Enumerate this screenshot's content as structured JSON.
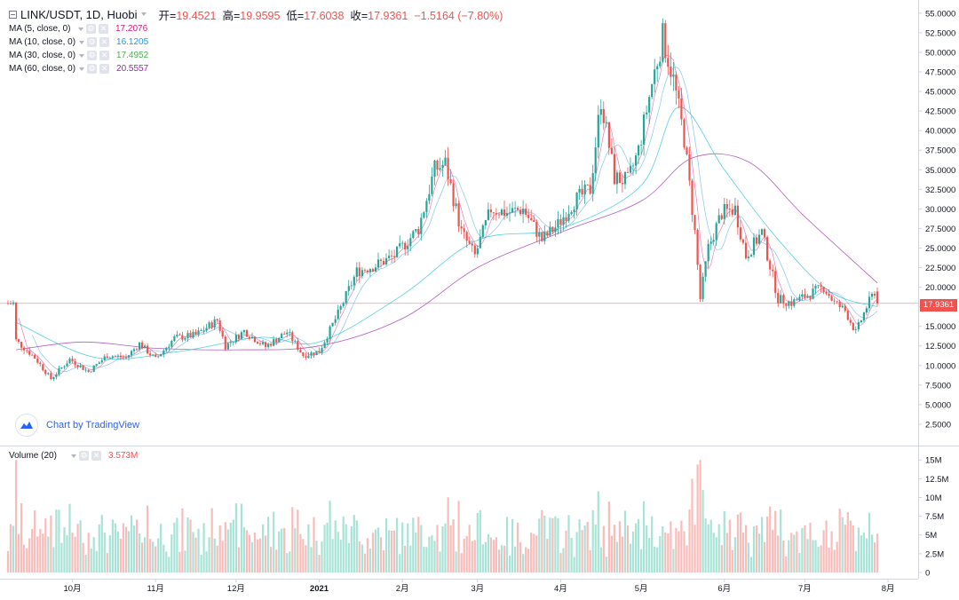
{
  "header": {
    "symbol": "LINK/USDT, 1D, Huobi",
    "open_label": "开=",
    "open": "19.4521",
    "high_label": "高=",
    "high": "19.9595",
    "low_label": "低=",
    "low": "17.6038",
    "close_label": "收=",
    "close": "17.9361",
    "change": "−1.5164 (−7.80%)"
  },
  "indicators": [
    {
      "name": "MA (5, close, 0)",
      "value": "17.2076",
      "color": "#d6197d"
    },
    {
      "name": "MA (10, close, 0)",
      "value": "16.1205",
      "color": "#2196f3"
    },
    {
      "name": "MA (30, close, 0)",
      "value": "17.4952",
      "color": "#4caf50"
    },
    {
      "name": "MA (60, close, 0)",
      "value": "20.5557",
      "color": "#9c27b0"
    }
  ],
  "volume_indicator": {
    "name": "Volume (20)",
    "value": "3.573M",
    "color": "#ef5350"
  },
  "branding": {
    "text": "Chart by TradingView"
  },
  "last_price_label": "17.9361",
  "colors": {
    "up": "#26a69a",
    "down": "#ef5350",
    "up_volume": "#a7e3d6",
    "down_volume": "#f8bcba",
    "ma5": "#d6197d",
    "ma10": "#2196f3",
    "ma30": "#4caf50",
    "ma60": "#9c27b0",
    "last_price_line": "#ef5350"
  },
  "chart_data": {
    "type": "candlestick",
    "price_axis": {
      "ticks": [
        "55.0000",
        "52.5000",
        "50.0000",
        "47.5000",
        "45.0000",
        "42.5000",
        "40.0000",
        "37.5000",
        "35.0000",
        "32.5000",
        "30.0000",
        "27.5000",
        "25.0000",
        "22.5000",
        "20.0000",
        "17.5000",
        "15.0000",
        "12.5000",
        "10.0000",
        "7.5000",
        "5.0000",
        "2.5000"
      ],
      "range": [
        0,
        56
      ]
    },
    "volume_axis": {
      "ticks": [
        "15M",
        "12.5M",
        "10M",
        "7.5M",
        "5M",
        "2.5M",
        "0"
      ],
      "range": [
        0,
        15.5
      ]
    },
    "time_axis": {
      "labels": [
        "10月",
        "11月",
        "12月",
        "2021",
        "2月",
        "3月",
        "4月",
        "5月",
        "6月",
        "7月",
        "8月"
      ]
    },
    "close_path": [
      {
        "x": "2020-09-10",
        "y": 13.2
      },
      {
        "x": "2020-09-17",
        "y": 11.0
      },
      {
        "x": "2020-09-23",
        "y": 8.3
      },
      {
        "x": "2020-09-30",
        "y": 10.8
      },
      {
        "x": "2020-10-07",
        "y": 9.2
      },
      {
        "x": "2020-10-14",
        "y": 11.3
      },
      {
        "x": "2020-10-21",
        "y": 11.0
      },
      {
        "x": "2020-10-26",
        "y": 12.8
      },
      {
        "x": "2020-11-01",
        "y": 10.8
      },
      {
        "x": "2020-11-08",
        "y": 13.5
      },
      {
        "x": "2020-11-16",
        "y": 13.9
      },
      {
        "x": "2020-11-24",
        "y": 15.8
      },
      {
        "x": "2020-11-27",
        "y": 12.5
      },
      {
        "x": "2020-12-04",
        "y": 14.4
      },
      {
        "x": "2020-12-12",
        "y": 12.4
      },
      {
        "x": "2020-12-20",
        "y": 14.3
      },
      {
        "x": "2020-12-26",
        "y": 11.3
      },
      {
        "x": "2021-01-01",
        "y": 11.8
      },
      {
        "x": "2021-01-08",
        "y": 16.6
      },
      {
        "x": "2021-01-15",
        "y": 22.0
      },
      {
        "x": "2021-01-22",
        "y": 22.8
      },
      {
        "x": "2021-01-29",
        "y": 24.0
      },
      {
        "x": "2021-02-07",
        "y": 27.5
      },
      {
        "x": "2021-02-13",
        "y": 35.0
      },
      {
        "x": "2021-02-17",
        "y": 35.8
      },
      {
        "x": "2021-02-23",
        "y": 27.0
      },
      {
        "x": "2021-02-28",
        "y": 24.0
      },
      {
        "x": "2021-03-06",
        "y": 30.0
      },
      {
        "x": "2021-03-12",
        "y": 29.5
      },
      {
        "x": "2021-03-18",
        "y": 30.0
      },
      {
        "x": "2021-03-25",
        "y": 26.0
      },
      {
        "x": "2021-03-31",
        "y": 28.0
      },
      {
        "x": "2021-04-06",
        "y": 31.0
      },
      {
        "x": "2021-04-12",
        "y": 32.5
      },
      {
        "x": "2021-04-16",
        "y": 44.0
      },
      {
        "x": "2021-04-21",
        "y": 34.0
      },
      {
        "x": "2021-04-26",
        "y": 33.5
      },
      {
        "x": "2021-04-30",
        "y": 37.5
      },
      {
        "x": "2021-05-05",
        "y": 46.0
      },
      {
        "x": "2021-05-09",
        "y": 52.0
      },
      {
        "x": "2021-05-13",
        "y": 46.5
      },
      {
        "x": "2021-05-17",
        "y": 39.0
      },
      {
        "x": "2021-05-21",
        "y": 27.0
      },
      {
        "x": "2021-05-23",
        "y": 18.5
      },
      {
        "x": "2021-05-26",
        "y": 25.0
      },
      {
        "x": "2021-05-31",
        "y": 29.5
      },
      {
        "x": "2021-06-05",
        "y": 30.0
      },
      {
        "x": "2021-06-09",
        "y": 24.0
      },
      {
        "x": "2021-06-15",
        "y": 27.0
      },
      {
        "x": "2021-06-21",
        "y": 18.5
      },
      {
        "x": "2021-06-26",
        "y": 18.0
      },
      {
        "x": "2021-07-02",
        "y": 19.0
      },
      {
        "x": "2021-07-08",
        "y": 20.0
      },
      {
        "x": "2021-07-12",
        "y": 18.0
      },
      {
        "x": "2021-07-16",
        "y": 17.0
      },
      {
        "x": "2021-07-20",
        "y": 14.2
      },
      {
        "x": "2021-07-24",
        "y": 17.5
      },
      {
        "x": "2021-07-27",
        "y": 19.45
      },
      {
        "x": "2021-07-28",
        "y": 17.9361
      }
    ],
    "moving_averages": [
      {
        "name": "MA (30, close, 0)",
        "points": [
          {
            "x": "2020-09-10",
            "y": 15.5
          },
          {
            "x": "2020-10-10",
            "y": 11.0
          },
          {
            "x": "2020-11-10",
            "y": 11.8
          },
          {
            "x": "2020-12-10",
            "y": 13.6
          },
          {
            "x": "2021-01-01",
            "y": 13.0
          },
          {
            "x": "2021-02-01",
            "y": 19.0
          },
          {
            "x": "2021-03-01",
            "y": 26.0
          },
          {
            "x": "2021-04-01",
            "y": 27.5
          },
          {
            "x": "2021-05-01",
            "y": 33.0
          },
          {
            "x": "2021-05-15",
            "y": 43.0
          },
          {
            "x": "2021-06-01",
            "y": 35.0
          },
          {
            "x": "2021-06-20",
            "y": 26.5
          },
          {
            "x": "2021-07-10",
            "y": 19.5
          },
          {
            "x": "2021-07-28",
            "y": 17.5
          }
        ]
      },
      {
        "name": "MA (60, close, 0)",
        "points": [
          {
            "x": "2020-09-10",
            "y": 12.0
          },
          {
            "x": "2020-10-05",
            "y": 13.0
          },
          {
            "x": "2020-11-01",
            "y": 12.2
          },
          {
            "x": "2020-12-01",
            "y": 12.0
          },
          {
            "x": "2021-01-01",
            "y": 12.5
          },
          {
            "x": "2021-02-01",
            "y": 16.0
          },
          {
            "x": "2021-03-01",
            "y": 22.5
          },
          {
            "x": "2021-04-01",
            "y": 27.0
          },
          {
            "x": "2021-05-01",
            "y": 31.0
          },
          {
            "x": "2021-05-20",
            "y": 36.5
          },
          {
            "x": "2021-06-10",
            "y": 36.0
          },
          {
            "x": "2021-07-01",
            "y": 29.0
          },
          {
            "x": "2021-07-28",
            "y": 20.5557
          }
        ]
      }
    ],
    "last_close": 17.9361,
    "volume_range": [
      0,
      15
    ]
  }
}
